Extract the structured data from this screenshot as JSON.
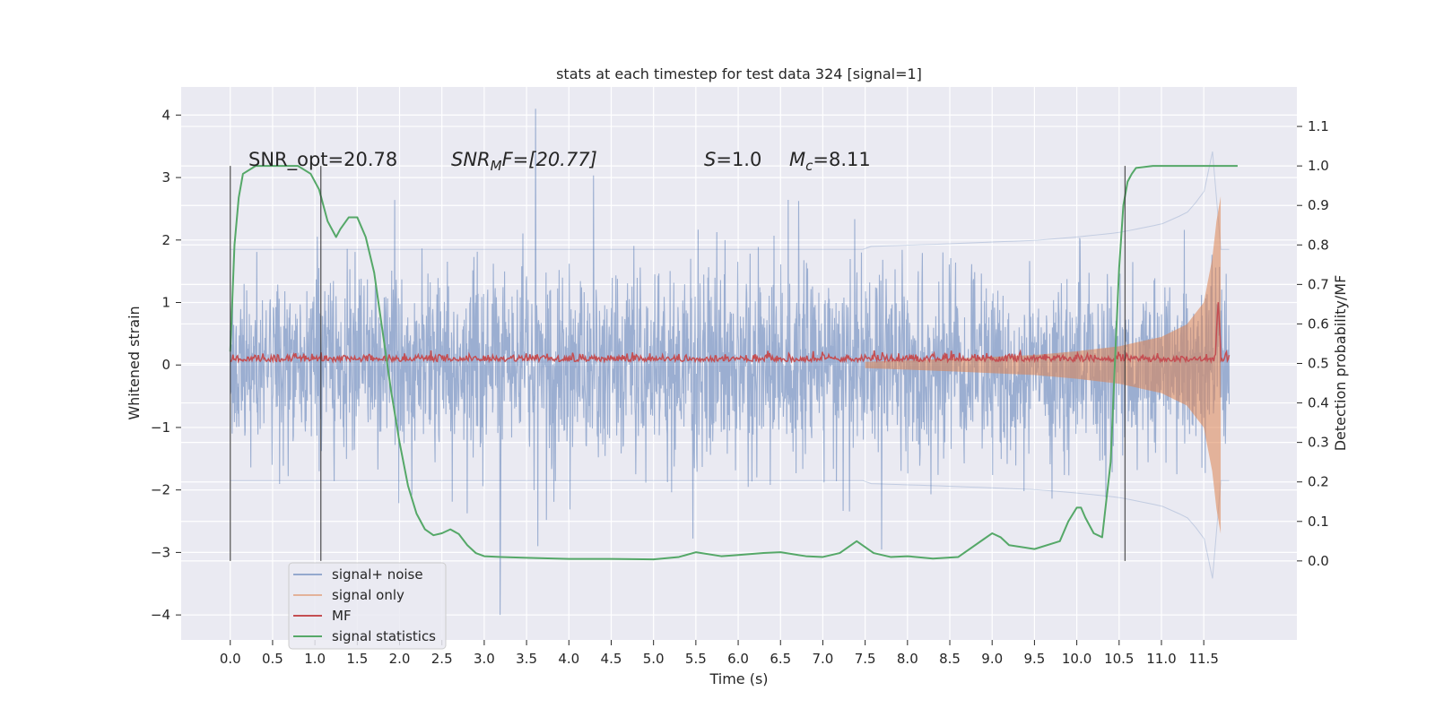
{
  "chart_data": {
    "type": "line",
    "title": "stats at each timestep for test data 324 [signal=1]",
    "xlabel": "Time (s)",
    "ylabel_left": "Whitened strain",
    "ylabel_right": "Detection probability/MF",
    "xlim": [
      -0.58,
      12.6
    ],
    "ylim_left": [
      -4.4,
      4.45
    ],
    "ylim_right": [
      -0.2,
      1.2
    ],
    "x_ticks": [
      "0.0",
      "0.5",
      "1.0",
      "1.5",
      "2.0",
      "2.5",
      "3.0",
      "3.5",
      "4.0",
      "4.5",
      "5.0",
      "5.5",
      "6.0",
      "6.5",
      "7.0",
      "7.5",
      "8.0",
      "8.5",
      "9.0",
      "9.5",
      "10.0",
      "10.5",
      "11.0",
      "11.5"
    ],
    "y_ticks_left": [
      "−4",
      "−3",
      "−2",
      "−1",
      "0",
      "1",
      "2",
      "3",
      "4"
    ],
    "y_ticks_right": [
      "0.0",
      "0.1",
      "0.2",
      "0.3",
      "0.4",
      "0.5",
      "0.6",
      "0.7",
      "0.8",
      "0.9",
      "1.0",
      "1.1"
    ],
    "grid": true,
    "legend_position": "lower-left",
    "annotations": {
      "snr_opt": "SNR_opt=20.78",
      "snr_mf_sym": "SNR",
      "snr_mf_sub": "M",
      "snr_mf_rest": "F=[20.77]",
      "s_sym": "S",
      "s_rest": "=1.0",
      "mc_sym": "M",
      "mc_sub": "c",
      "mc_rest": "=8.11"
    },
    "vertical_markers_x": [
      0.0,
      1.07,
      10.57
    ],
    "series": [
      {
        "name": "signal+ noise",
        "axis": "left",
        "color": "#4c72b0",
        "noise_envelope": {
          "x_start": 0.0,
          "x_end": 11.8,
          "typical_abs": 1.3,
          "max": 4.1,
          "min": -4.0
        }
      },
      {
        "name": "signal only",
        "axis": "left",
        "color": "#dd8452",
        "chirp_envelope": {
          "x": [
            7.5,
            8.5,
            9.5,
            10.0,
            10.5,
            11.0,
            11.3,
            11.5,
            11.6,
            11.65,
            11.7
          ],
          "amplitude": [
            0.05,
            0.1,
            0.16,
            0.22,
            0.3,
            0.45,
            0.65,
            1.0,
            1.7,
            2.3,
            2.7
          ]
        }
      },
      {
        "name": "MF",
        "axis": "right",
        "color": "#c44e52",
        "baseline": 0.505,
        "spike": {
          "x": 11.67,
          "y": 0.66
        }
      },
      {
        "name": "signal statistics",
        "axis": "right",
        "color": "#55a868",
        "x": [
          0.0,
          0.05,
          0.1,
          0.15,
          0.3,
          0.5,
          0.8,
          0.95,
          1.05,
          1.15,
          1.25,
          1.3,
          1.4,
          1.5,
          1.6,
          1.7,
          1.8,
          1.9,
          2.0,
          2.1,
          2.2,
          2.3,
          2.4,
          2.5,
          2.6,
          2.7,
          2.8,
          2.9,
          3.0,
          3.2,
          3.5,
          4.0,
          4.5,
          5.0,
          5.3,
          5.5,
          5.8,
          6.0,
          6.3,
          6.5,
          6.8,
          7.0,
          7.2,
          7.4,
          7.6,
          7.8,
          8.0,
          8.3,
          8.6,
          8.9,
          9.0,
          9.1,
          9.2,
          9.5,
          9.8,
          9.9,
          10.0,
          10.05,
          10.1,
          10.2,
          10.3,
          10.4,
          10.45,
          10.5,
          10.55,
          10.6,
          10.65,
          10.7,
          10.9,
          11.2,
          11.5,
          11.9
        ],
        "y": [
          0.53,
          0.8,
          0.92,
          0.98,
          1.0,
          1.0,
          1.0,
          0.98,
          0.94,
          0.86,
          0.82,
          0.84,
          0.87,
          0.87,
          0.82,
          0.73,
          0.58,
          0.43,
          0.3,
          0.19,
          0.12,
          0.08,
          0.065,
          0.07,
          0.08,
          0.068,
          0.04,
          0.02,
          0.012,
          0.01,
          0.008,
          0.005,
          0.005,
          0.004,
          0.01,
          0.022,
          0.012,
          0.015,
          0.02,
          0.022,
          0.012,
          0.01,
          0.02,
          0.05,
          0.02,
          0.01,
          0.012,
          0.006,
          0.01,
          0.055,
          0.07,
          0.06,
          0.04,
          0.03,
          0.05,
          0.1,
          0.135,
          0.135,
          0.11,
          0.07,
          0.06,
          0.25,
          0.5,
          0.74,
          0.9,
          0.96,
          0.98,
          0.995,
          1.0,
          1.0,
          1.0,
          1.0
        ]
      }
    ]
  }
}
